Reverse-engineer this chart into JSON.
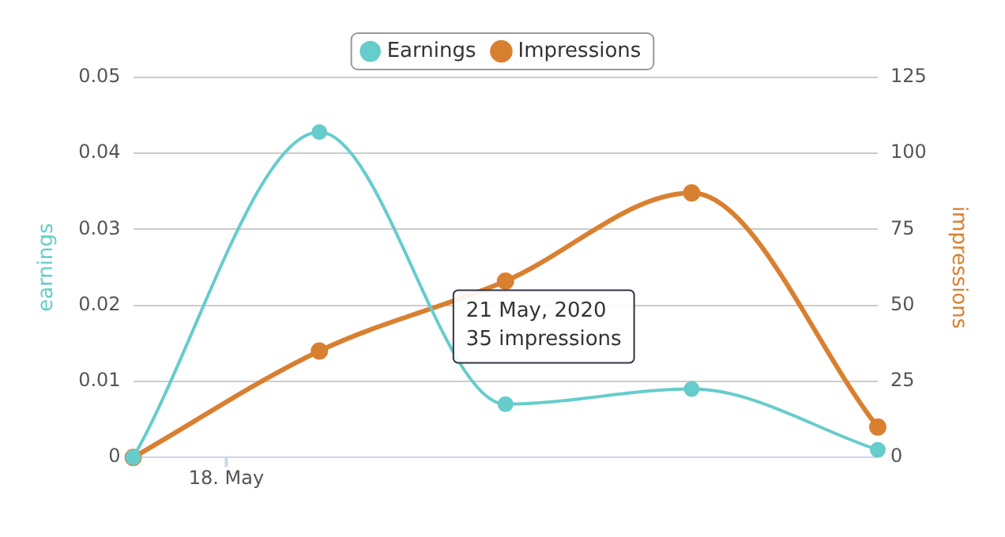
{
  "chart_data": {
    "type": "line",
    "categories": [
      null,
      null,
      null,
      null,
      null
    ],
    "ylabel": "earnings",
    "y2label": "impressions",
    "ylim": [
      0,
      0.05
    ],
    "yticks": [
      0,
      0.01,
      0.02,
      0.03,
      0.04,
      0.05
    ],
    "y2lim": [
      0,
      125
    ],
    "y2ticks": [
      0,
      25,
      50,
      75,
      100,
      125
    ],
    "series": [
      {
        "name": "Earnings",
        "color": "#66cccc",
        "values": [
          0,
          0.0428,
          0.007,
          0.009,
          0.001
        ]
      },
      {
        "name": "Impressions",
        "color": "#d98030",
        "values": [
          0,
          35,
          58,
          87,
          10
        ],
        "axis": "y2"
      }
    ],
    "annotations": [
      "18. May",
      "21 May, 2020",
      "35 impressions"
    ],
    "grid": "y",
    "legend": "top",
    "marker": "circle",
    "line_style": "solid"
  }
}
